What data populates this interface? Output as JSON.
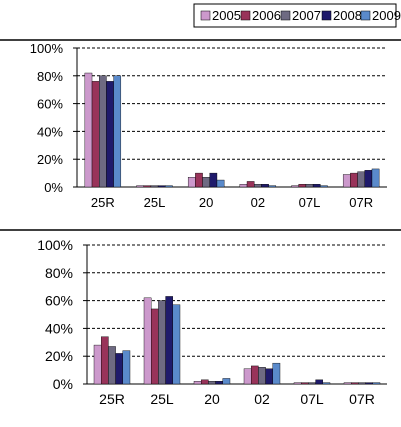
{
  "legend": {
    "placement": "top-right",
    "entries": [
      {
        "label": "2005",
        "color": "#CC99CC"
      },
      {
        "label": "2006",
        "color": "#99335A"
      },
      {
        "label": "2007",
        "color": "#6E6A82"
      },
      {
        "label": "2008",
        "color": "#1F1A6B"
      },
      {
        "label": "2009",
        "color": "#5A8ACB"
      }
    ]
  },
  "chart_data": [
    {
      "type": "bar",
      "categories": [
        "25R",
        "25L",
        "20",
        "02",
        "07L",
        "07R"
      ],
      "ylim": [
        0,
        100
      ],
      "yticks": [
        "0%",
        "20%",
        "40%",
        "60%",
        "80%",
        "100%"
      ],
      "grid": "dashed horizontal",
      "series": [
        {
          "name": "2005",
          "values": [
            82,
            1,
            7,
            2,
            1,
            9
          ]
        },
        {
          "name": "2006",
          "values": [
            76,
            1,
            10,
            4,
            2,
            10
          ]
        },
        {
          "name": "2007",
          "values": [
            80,
            1,
            7,
            2,
            2,
            11
          ]
        },
        {
          "name": "2008",
          "values": [
            76,
            1,
            10,
            2,
            2,
            12
          ]
        },
        {
          "name": "2009",
          "values": [
            80,
            1,
            5,
            1,
            1,
            13
          ]
        }
      ]
    },
    {
      "type": "bar",
      "categories": [
        "25R",
        "25L",
        "20",
        "02",
        "07L",
        "07R"
      ],
      "ylim": [
        0,
        100
      ],
      "yticks": [
        "0%",
        "20%",
        "40%",
        "60%",
        "80%",
        "100%"
      ],
      "grid": "dashed horizontal",
      "series": [
        {
          "name": "2005",
          "values": [
            28,
            62,
            2,
            11,
            1,
            1
          ]
        },
        {
          "name": "2006",
          "values": [
            34,
            54,
            3,
            13,
            1,
            1
          ]
        },
        {
          "name": "2007",
          "values": [
            27,
            60,
            2,
            12,
            1,
            1
          ]
        },
        {
          "name": "2008",
          "values": [
            22,
            63,
            2,
            11,
            3,
            1
          ]
        },
        {
          "name": "2009",
          "values": [
            24,
            57,
            4,
            15,
            1,
            1
          ]
        }
      ]
    }
  ]
}
